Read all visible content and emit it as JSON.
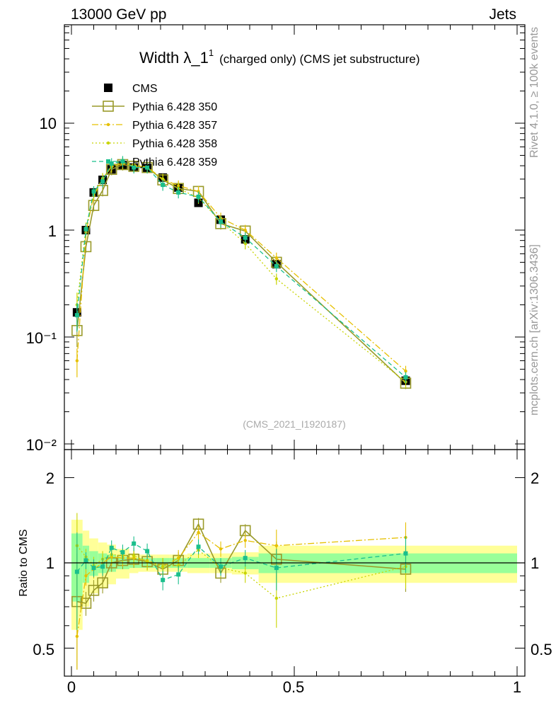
{
  "header": {
    "left": "13000 GeV pp",
    "right": "Jets"
  },
  "title": {
    "main": "Width λ_1",
    "sup": "1",
    "sub": "(charged only) (CMS jet substructure)"
  },
  "side_labels": {
    "rivet": "Rivet 4.1.0, ≥ 100k events",
    "mcplots": "mcplots.cern.ch [arXiv:1306.3436]"
  },
  "watermark": "(CMS_2021_I1920187)",
  "colors": {
    "cms": "#000000",
    "p350": "#9a9a2a",
    "p357": "#e6c000",
    "p358": "#c8d400",
    "p359": "#1abf8c",
    "band_yellow": "#ffff99",
    "band_green": "#99ff99"
  },
  "chart_data": {
    "type": "line",
    "title": "Width λ_1^1 (charged only) (CMS jet substructure)",
    "xlabel": "",
    "ylabel": "",
    "ratio_ylabel": "Ratio to CMS",
    "xlim": [
      -0.02,
      1.01
    ],
    "ylim": [
      0.008,
      80
    ],
    "ratio_ylim": [
      0.4,
      2.4
    ],
    "x_ticks": [
      "0",
      "0.5",
      "1"
    ],
    "y_ticks": [
      "10",
      "1",
      "10⁻¹",
      "10⁻²"
    ],
    "ratio_ticks": [
      "2",
      "1",
      "0.5"
    ],
    "x": [
      0.0125,
      0.0325,
      0.05,
      0.07,
      0.09,
      0.115,
      0.14,
      0.17,
      0.205,
      0.24,
      0.285,
      0.335,
      0.39,
      0.46,
      0.75
    ],
    "bins": [
      0,
      0.025,
      0.04,
      0.06,
      0.08,
      0.1,
      0.13,
      0.15,
      0.19,
      0.22,
      0.26,
      0.31,
      0.36,
      0.42,
      0.5,
      1.0
    ],
    "ratio_band_yellow": [
      0.42,
      0.3,
      0.22,
      0.18,
      0.16,
      0.12,
      0.08,
      0.07,
      0.07,
      0.07,
      0.08,
      0.08,
      0.09,
      0.15,
      0.15
    ],
    "ratio_band_green": [
      0.27,
      0.15,
      0.1,
      0.08,
      0.07,
      0.05,
      0.04,
      0.04,
      0.04,
      0.04,
      0.04,
      0.04,
      0.05,
      0.08,
      0.08
    ],
    "series": [
      {
        "name": "CMS",
        "style": "cms",
        "values": [
          0.17,
          1.0,
          2.25,
          2.95,
          3.7,
          4.05,
          3.85,
          3.8,
          3.1,
          2.5,
          1.8,
          1.25,
          0.82,
          0.48,
          0.039
        ]
      },
      {
        "name": "Pythia 6.428 350",
        "style": "p350",
        "values": [
          0.115,
          0.7,
          1.7,
          2.35,
          3.7,
          4.1,
          3.95,
          3.85,
          2.95,
          2.45,
          2.3,
          1.15,
          0.98,
          0.5,
          0.037
        ],
        "ratio": [
          0.73,
          0.72,
          0.8,
          0.85,
          1.0,
          1.02,
          1.03,
          1.01,
          0.95,
          1.02,
          1.37,
          0.92,
          1.3,
          1.03,
          0.95
        ]
      },
      {
        "name": "Pythia 6.428 357",
        "style": "p357",
        "values": [
          0.06,
          0.95,
          2.1,
          3.0,
          3.9,
          4.2,
          4.0,
          3.9,
          3.0,
          2.6,
          2.3,
          1.3,
          1.0,
          0.55,
          0.048
        ],
        "ratio": [
          0.55,
          0.9,
          0.95,
          1.0,
          1.05,
          1.04,
          1.04,
          1.02,
          0.97,
          1.04,
          1.28,
          1.12,
          1.2,
          1.15,
          1.23
        ]
      },
      {
        "name": "Pythia 6.428 358",
        "style": "p358",
        "values": [
          0.2,
          1.05,
          2.2,
          3.05,
          3.95,
          4.3,
          4.1,
          3.85,
          3.0,
          2.45,
          2.0,
          1.2,
          0.75,
          0.35,
          0.038
        ],
        "ratio": [
          1.15,
          1.05,
          0.98,
          1.03,
          1.07,
          1.06,
          1.06,
          1.01,
          0.97,
          0.98,
          1.11,
          0.96,
          0.92,
          0.75,
          0.97
        ]
      },
      {
        "name": "Pythia 6.428 359",
        "style": "p359",
        "values": [
          0.16,
          1.02,
          2.3,
          2.85,
          4.2,
          4.4,
          3.85,
          3.85,
          2.65,
          2.25,
          2.05,
          1.2,
          0.85,
          0.46,
          0.042
        ],
        "ratio": [
          0.93,
          1.02,
          0.96,
          0.97,
          1.13,
          1.09,
          1.17,
          1.1,
          0.87,
          0.91,
          1.14,
          0.97,
          1.04,
          0.96,
          1.08
        ]
      }
    ],
    "legend": [
      {
        "label": "CMS",
        "style": "cms"
      },
      {
        "label": "Pythia 6.428 350",
        "style": "p350"
      },
      {
        "label": "Pythia 6.428 357",
        "style": "p357"
      },
      {
        "label": "Pythia 6.428 358",
        "style": "p358"
      },
      {
        "label": "Pythia 6.428 359",
        "style": "p359"
      }
    ]
  }
}
